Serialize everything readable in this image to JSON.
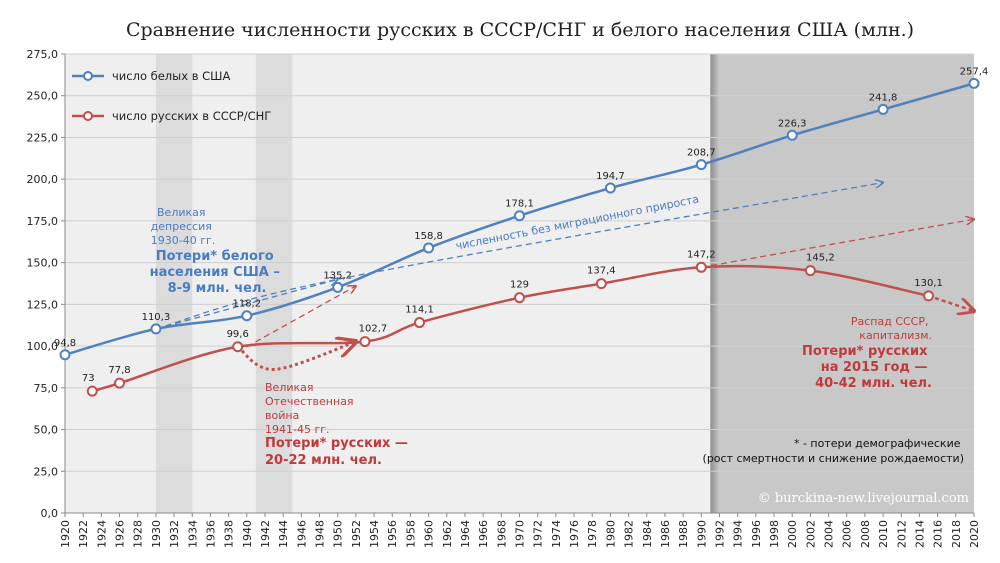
{
  "chart_data": {
    "type": "line",
    "title": "Сравнение численности русских в СССР/СНГ и белого населения США (млн.)",
    "ylim": [
      0,
      275
    ],
    "y_ticks": [
      "0,0",
      "25,0",
      "50,0",
      "75,0",
      "100,0",
      "125,0",
      "150,0",
      "175,0",
      "200,0",
      "225,0",
      "250,0",
      "275,0"
    ],
    "y_tick_values": [
      0,
      25,
      50,
      75,
      100,
      125,
      150,
      175,
      200,
      225,
      250,
      275
    ],
    "xlim": [
      1920,
      2020
    ],
    "x_ticks": [
      "1920",
      "1922",
      "1924",
      "1926",
      "1928",
      "1930",
      "1932",
      "1934",
      "1936",
      "1938",
      "1940",
      "1942",
      "1944",
      "1946",
      "1948",
      "1950",
      "1952",
      "1954",
      "1956",
      "1958",
      "1960",
      "1962",
      "1964",
      "1966",
      "1968",
      "1970",
      "1972",
      "1974",
      "1976",
      "1978",
      "1980",
      "1982",
      "1984",
      "1986",
      "1988",
      "1990",
      "1992",
      "1994",
      "1996",
      "1998",
      "2000",
      "2002",
      "2004",
      "2006",
      "2008",
      "2010",
      "2012",
      "2014",
      "2016",
      "2018",
      "2020"
    ],
    "series": [
      {
        "name": "число белых в США",
        "color": "#4f81bd",
        "x": [
          1920,
          1930,
          1940,
          1950,
          1960,
          1970,
          1980,
          1990,
          2000,
          2010,
          2020
        ],
        "values": [
          94.8,
          110.3,
          118.2,
          135.2,
          158.8,
          178.1,
          194.7,
          208.7,
          226.3,
          241.8,
          257.4
        ],
        "labels": [
          "94,8",
          "110,3",
          "118,2",
          "135,2",
          "158,8",
          "178,1",
          "194,7",
          "208,7",
          "226,3",
          "241,8",
          "257,4"
        ]
      },
      {
        "name": "число русских в СССР/СНГ",
        "color": "#c0504d",
        "x": [
          1923,
          1926,
          1939,
          1953,
          1959,
          1970,
          1979,
          1990,
          2002,
          2015
        ],
        "values": [
          73,
          77.8,
          99.6,
          102.7,
          114.1,
          129,
          137.4,
          147.2,
          145.2,
          130.1
        ],
        "labels": [
          "73",
          "77,8",
          "99,6",
          "102,7",
          "114,1",
          "129",
          "137,4",
          "147,2",
          "145,2",
          "130,1"
        ]
      }
    ],
    "shaded_periods": [
      {
        "from": 1930,
        "to": 1934,
        "label": "Великая депрессия"
      },
      {
        "from": 1941,
        "to": 1945,
        "label": "Великая Отечественная война"
      },
      {
        "from": 1991,
        "to": 2020,
        "label": "Распад СССР"
      }
    ],
    "projections": {
      "usa_no_migration": {
        "x": [
          1930,
          1950,
          2010
        ],
        "values": [
          110.3,
          140,
          198
        ]
      },
      "russia_depression": {
        "x": [
          1930,
          1950
        ],
        "values": [
          110.3,
          140
        ]
      },
      "russia_war_trend": {
        "x": [
          1940,
          1952
        ],
        "values": [
          99.6,
          136
        ]
      },
      "russia_war_dip": {
        "x": [
          1939,
          1943,
          1952
        ],
        "values": [
          99.6,
          86,
          102.7
        ]
      },
      "russia_post_1990": {
        "x": [
          1990,
          2020
        ],
        "values": [
          147.2,
          176
        ]
      },
      "russia_decline_tail": {
        "x": [
          2015,
          2020
        ],
        "values": [
          130.1,
          121
        ]
      }
    }
  },
  "legend": {
    "white_usa": "число белых в США",
    "russians": "число русских в СССР/СНГ"
  },
  "annotations": {
    "depression": [
      "Великая",
      "депрессия",
      "1930-40 гг."
    ],
    "usa_losses": [
      "Потери* белого",
      "населения США –",
      "8-9 млн. чел."
    ],
    "no_migration": "численность без миграционного прироста",
    "war": [
      "Великая",
      "Отечественная",
      "война",
      "1941-45 гг."
    ],
    "war_losses": [
      "Потери* русских —",
      "20-22 млн. чел."
    ],
    "collapse": [
      "Распад СССР,",
      "капитализм."
    ],
    "collapse_losses": [
      "Потери* русских",
      "на 2015 год —",
      "40-42 млн. чел."
    ],
    "footnote": [
      "* - потери демографические",
      "(рост смертности и снижение рождаемости)"
    ],
    "copyright": "© burckina-new.livejournal.com"
  },
  "colors": {
    "blue": "#4f81bd",
    "red": "#c0504d",
    "plot_bg": "#efefef",
    "band": "#dcdcdc",
    "dark_band": "#c8c8c8"
  }
}
